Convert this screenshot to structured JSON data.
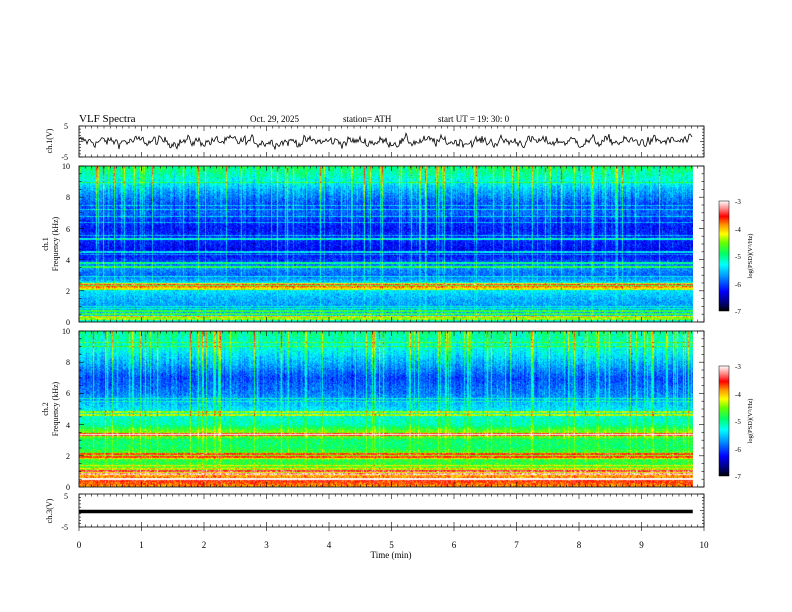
{
  "header": {
    "title": "VLF Spectra",
    "date": "Oct. 29, 2025",
    "station": "station= ATH",
    "start_ut": "start  UT  =   19: 30: 0"
  },
  "chart_data": {
    "type": "heatmap",
    "title": "VLF Spectra",
    "xlabel": "Time (min)",
    "xlim": [
      0,
      10
    ],
    "x_ticks": [
      "0",
      "1",
      "2",
      "3",
      "4",
      "5",
      "6",
      "7",
      "8",
      "9",
      "10"
    ],
    "data_end_min": 9.82,
    "panels": {
      "ch1_wave": {
        "ylabel": "ch.1(V)",
        "ylim": [
          -5,
          5
        ],
        "y_ticks": [
          "5",
          "-5"
        ],
        "amplitude_v": 2.0,
        "description": "noisy oscillating waveform"
      },
      "ch1_spec": {
        "ylabel_top": "ch.1",
        "ylabel": "Frequency (kHz)",
        "ylim": [
          0,
          10
        ],
        "y_ticks": [
          "0",
          "2",
          "4",
          "6",
          "8",
          "10"
        ],
        "colorbar_label": "log(PSD)(V²/Hz)",
        "colorbar_range": [
          -7,
          -3
        ],
        "colorbar_ticks": [
          "-3",
          "-4",
          "-5",
          "-6",
          "-7"
        ],
        "profile_khz": [
          0,
          0.5,
          1,
          1.5,
          2,
          2.3,
          2.6,
          3,
          3.5,
          4,
          4.5,
          5,
          5.5,
          6,
          6.5,
          7,
          7.5,
          8,
          8.5,
          9,
          9.5,
          10
        ],
        "profile_log_psd": [
          -5.2,
          -5.6,
          -5.7,
          -5.6,
          -5.4,
          -4.6,
          -5.6,
          -5.9,
          -5.7,
          -6.1,
          -6.3,
          -6.2,
          -6.1,
          -6.2,
          -6.1,
          -5.9,
          -6.0,
          -5.8,
          -5.6,
          -5.3,
          -5.1,
          -4.9
        ],
        "lines_khz": [
          0.15,
          0.3,
          0.5,
          0.7,
          2.1,
          2.25,
          2.4,
          3.5,
          3.8,
          4.5,
          5.3
        ]
      },
      "ch2_spec": {
        "ylabel_top": "ch.2",
        "ylabel": "Frequency (kHz)",
        "ylim": [
          0,
          10
        ],
        "y_ticks": [
          "0",
          "2",
          "4",
          "6",
          "8",
          "10"
        ],
        "colorbar_label": "log(PSD)(V²/Hz)",
        "colorbar_range": [
          -7,
          -3
        ],
        "colorbar_ticks": [
          "-3",
          "-4",
          "-5",
          "-6",
          "-7"
        ],
        "profile_khz": [
          0,
          0.4,
          0.8,
          1.2,
          1.6,
          2,
          2.5,
          3,
          3.3,
          3.6,
          4,
          4.5,
          5,
          5.5,
          6,
          6.5,
          7,
          7.5,
          8,
          8.5,
          9,
          9.5,
          10
        ],
        "profile_log_psd": [
          -3.9,
          -3.6,
          -4.1,
          -4.6,
          -4.8,
          -4.5,
          -4.9,
          -4.9,
          -4.4,
          -4.6,
          -5.1,
          -5.2,
          -5.4,
          -5.6,
          -5.8,
          -5.9,
          -6.0,
          -5.8,
          -5.6,
          -5.4,
          -5.2,
          -5.1,
          -5.0
        ],
        "lines_khz": [
          0.5,
          0.8,
          1.0,
          1.9,
          2.1,
          3.3,
          3.4,
          4.6,
          4.8
        ]
      },
      "ch3_wave": {
        "ylabel": "ch.3(V)",
        "ylim": [
          -5,
          5
        ],
        "y_ticks": [
          "5",
          "-5"
        ],
        "level_v": -0.3,
        "description": "flat baseline"
      }
    }
  }
}
